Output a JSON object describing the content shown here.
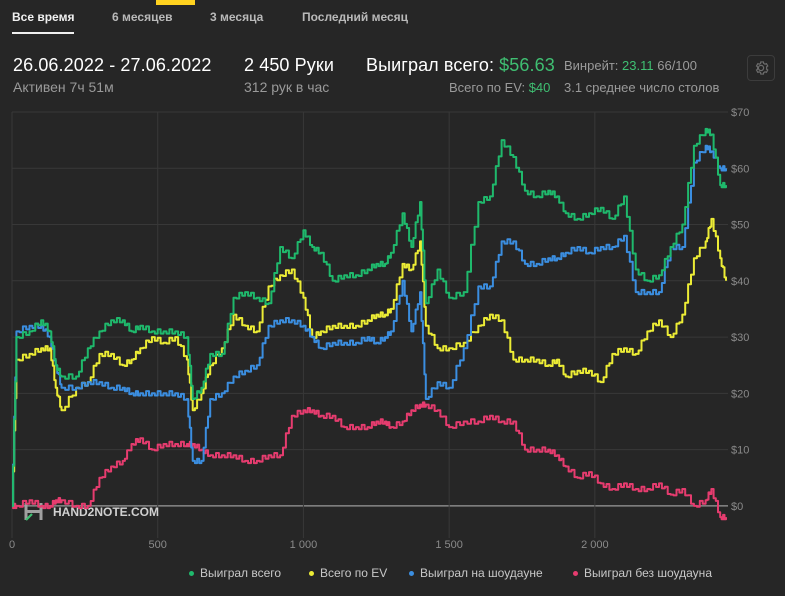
{
  "tabs": [
    {
      "label": "Все время",
      "active": true
    },
    {
      "label": "6 месяцев",
      "active": false
    },
    {
      "label": "3 месяца",
      "active": false
    },
    {
      "label": "Последний месяц",
      "active": false
    }
  ],
  "summary": {
    "date_range": "26.06.2022 - 27.06.2022",
    "active": "Активен 7ч 51м",
    "hands": "2 450 Руки",
    "hands_per_hour": "312 рук в час",
    "won_label": "Выиграл всего:",
    "won_value": "$56.63",
    "ev_label": "Всего по EV:",
    "ev_value": "$40",
    "winrate_label": "Винрейт:",
    "winrate_value": "23.11",
    "winrate_unit": "66/100",
    "tables_text": "3.1 среднее число столов"
  },
  "settings": {
    "icon": "gear-icon"
  },
  "watermark": {
    "text": "HAND2NOTE.COM"
  },
  "colors": {
    "won_total": "#1fb96c",
    "ev_total": "#ecec35",
    "showdown": "#3b8ee0",
    "non_showdown": "#e63c6f",
    "grid": "#383838",
    "zero_line": "#9a9a9a",
    "axis_text": "#8a8a8a"
  },
  "chart_data": {
    "type": "line",
    "title": "",
    "xlabel": "",
    "ylabel": "",
    "xlim": [
      0,
      2450
    ],
    "ylim": [
      -5,
      70
    ],
    "x_ticks": [
      0,
      500,
      1000,
      1500,
      2000
    ],
    "x_tick_labels": [
      "0",
      "500",
      "1 000",
      "1 500",
      "2 000"
    ],
    "y_ticks": [
      0,
      10,
      20,
      30,
      40,
      50,
      60,
      70
    ],
    "y_tick_labels": [
      "$0",
      "$10",
      "$20",
      "$30",
      "$40",
      "$50",
      "$60",
      "$70"
    ],
    "grid": true,
    "legend_position": "bottom",
    "series": [
      {
        "name": "Выиграл всего",
        "color": "#1fb96c",
        "points": [
          [
            0,
            0
          ],
          [
            15,
            30
          ],
          [
            60,
            31
          ],
          [
            100,
            33
          ],
          [
            130,
            31
          ],
          [
            150,
            25
          ],
          [
            170,
            23
          ],
          [
            220,
            23
          ],
          [
            260,
            28
          ],
          [
            300,
            31
          ],
          [
            340,
            33
          ],
          [
            380,
            33
          ],
          [
            410,
            31
          ],
          [
            440,
            32
          ],
          [
            480,
            31
          ],
          [
            520,
            31
          ],
          [
            560,
            31
          ],
          [
            600,
            30
          ],
          [
            620,
            19
          ],
          [
            650,
            21
          ],
          [
            680,
            27
          ],
          [
            720,
            27
          ],
          [
            760,
            37
          ],
          [
            800,
            38
          ],
          [
            840,
            37
          ],
          [
            880,
            36
          ],
          [
            920,
            46
          ],
          [
            960,
            44
          ],
          [
            1000,
            49
          ],
          [
            1030,
            46
          ],
          [
            1060,
            45
          ],
          [
            1100,
            40
          ],
          [
            1140,
            41
          ],
          [
            1180,
            41
          ],
          [
            1220,
            42
          ],
          [
            1250,
            43
          ],
          [
            1280,
            43
          ],
          [
            1300,
            45
          ],
          [
            1340,
            52
          ],
          [
            1370,
            46
          ],
          [
            1400,
            54
          ],
          [
            1420,
            36
          ],
          [
            1460,
            42
          ],
          [
            1500,
            37
          ],
          [
            1550,
            38
          ],
          [
            1600,
            54
          ],
          [
            1640,
            55
          ],
          [
            1680,
            65
          ],
          [
            1720,
            62
          ],
          [
            1760,
            56
          ],
          [
            1800,
            55
          ],
          [
            1840,
            56
          ],
          [
            1870,
            55
          ],
          [
            1900,
            52
          ],
          [
            1940,
            51
          ],
          [
            1980,
            52
          ],
          [
            2020,
            53
          ],
          [
            2060,
            51
          ],
          [
            2100,
            55
          ],
          [
            2140,
            42
          ],
          [
            2180,
            40
          ],
          [
            2220,
            41
          ],
          [
            2260,
            46
          ],
          [
            2300,
            50
          ],
          [
            2340,
            64
          ],
          [
            2380,
            67
          ],
          [
            2400,
            66
          ],
          [
            2430,
            57
          ],
          [
            2450,
            57
          ]
        ]
      },
      {
        "name": "Всего по EV",
        "color": "#ecec35",
        "points": [
          [
            0,
            0
          ],
          [
            15,
            26
          ],
          [
            60,
            27
          ],
          [
            100,
            28
          ],
          [
            130,
            28
          ],
          [
            150,
            21
          ],
          [
            170,
            17
          ],
          [
            220,
            21
          ],
          [
            260,
            22
          ],
          [
            300,
            27
          ],
          [
            340,
            27
          ],
          [
            380,
            25
          ],
          [
            410,
            26
          ],
          [
            440,
            28
          ],
          [
            480,
            30
          ],
          [
            520,
            29
          ],
          [
            560,
            30
          ],
          [
            600,
            26
          ],
          [
            620,
            17
          ],
          [
            650,
            20
          ],
          [
            680,
            25
          ],
          [
            720,
            28
          ],
          [
            760,
            34
          ],
          [
            800,
            32
          ],
          [
            840,
            31
          ],
          [
            880,
            39
          ],
          [
            920,
            41
          ],
          [
            960,
            42
          ],
          [
            1000,
            37
          ],
          [
            1030,
            30
          ],
          [
            1060,
            31
          ],
          [
            1100,
            32
          ],
          [
            1140,
            32
          ],
          [
            1180,
            32
          ],
          [
            1220,
            33
          ],
          [
            1250,
            34
          ],
          [
            1280,
            34
          ],
          [
            1300,
            35
          ],
          [
            1340,
            43
          ],
          [
            1370,
            42
          ],
          [
            1400,
            47
          ],
          [
            1420,
            32
          ],
          [
            1460,
            28
          ],
          [
            1500,
            28
          ],
          [
            1550,
            29
          ],
          [
            1600,
            32
          ],
          [
            1640,
            34
          ],
          [
            1680,
            33
          ],
          [
            1720,
            26
          ],
          [
            1760,
            26
          ],
          [
            1800,
            26
          ],
          [
            1840,
            25
          ],
          [
            1870,
            26
          ],
          [
            1900,
            23
          ],
          [
            1940,
            24
          ],
          [
            1980,
            24
          ],
          [
            2020,
            22
          ],
          [
            2060,
            27
          ],
          [
            2100,
            28
          ],
          [
            2140,
            27
          ],
          [
            2180,
            31
          ],
          [
            2220,
            33
          ],
          [
            2260,
            30
          ],
          [
            2300,
            34
          ],
          [
            2340,
            44
          ],
          [
            2380,
            47
          ],
          [
            2400,
            51
          ],
          [
            2430,
            44
          ],
          [
            2450,
            40
          ]
        ]
      },
      {
        "name": "Выиграл на шоудауне",
        "color": "#3b8ee0",
        "points": [
          [
            0,
            0
          ],
          [
            15,
            31
          ],
          [
            60,
            32
          ],
          [
            100,
            32
          ],
          [
            130,
            30
          ],
          [
            150,
            25
          ],
          [
            170,
            21
          ],
          [
            220,
            21
          ],
          [
            260,
            22
          ],
          [
            300,
            22
          ],
          [
            340,
            21
          ],
          [
            380,
            21
          ],
          [
            410,
            20
          ],
          [
            440,
            20
          ],
          [
            480,
            20
          ],
          [
            520,
            20
          ],
          [
            560,
            20
          ],
          [
            600,
            19
          ],
          [
            620,
            8
          ],
          [
            650,
            8
          ],
          [
            680,
            19
          ],
          [
            720,
            20
          ],
          [
            760,
            23
          ],
          [
            800,
            24
          ],
          [
            840,
            25
          ],
          [
            880,
            32
          ],
          [
            920,
            33
          ],
          [
            960,
            33
          ],
          [
            1000,
            32
          ],
          [
            1030,
            30
          ],
          [
            1060,
            28
          ],
          [
            1100,
            29
          ],
          [
            1140,
            29
          ],
          [
            1180,
            29
          ],
          [
            1220,
            30
          ],
          [
            1250,
            29
          ],
          [
            1280,
            30
          ],
          [
            1300,
            31
          ],
          [
            1340,
            40
          ],
          [
            1370,
            31
          ],
          [
            1400,
            38
          ],
          [
            1420,
            19
          ],
          [
            1460,
            22
          ],
          [
            1500,
            21
          ],
          [
            1550,
            28
          ],
          [
            1600,
            39
          ],
          [
            1640,
            39
          ],
          [
            1680,
            47
          ],
          [
            1720,
            47
          ],
          [
            1760,
            43
          ],
          [
            1800,
            43
          ],
          [
            1840,
            44
          ],
          [
            1870,
            44
          ],
          [
            1900,
            45
          ],
          [
            1940,
            46
          ],
          [
            1980,
            45
          ],
          [
            2020,
            46
          ],
          [
            2060,
            46
          ],
          [
            2100,
            48
          ],
          [
            2140,
            38
          ],
          [
            2180,
            38
          ],
          [
            2220,
            38
          ],
          [
            2260,
            46
          ],
          [
            2300,
            46
          ],
          [
            2340,
            61
          ],
          [
            2380,
            64
          ],
          [
            2400,
            63
          ],
          [
            2430,
            60
          ],
          [
            2450,
            60
          ]
        ]
      },
      {
        "name": "Выиграл без шоудауна",
        "color": "#e63c6f",
        "points": [
          [
            0,
            0
          ],
          [
            15,
            0
          ],
          [
            60,
            1
          ],
          [
            100,
            0
          ],
          [
            130,
            0
          ],
          [
            150,
            1
          ],
          [
            170,
            1
          ],
          [
            220,
            0
          ],
          [
            260,
            0
          ],
          [
            300,
            5
          ],
          [
            340,
            7
          ],
          [
            380,
            8
          ],
          [
            410,
            11
          ],
          [
            440,
            12
          ],
          [
            480,
            10
          ],
          [
            520,
            11
          ],
          [
            560,
            11
          ],
          [
            600,
            11
          ],
          [
            620,
            11
          ],
          [
            650,
            10
          ],
          [
            680,
            9
          ],
          [
            720,
            9
          ],
          [
            760,
            9
          ],
          [
            800,
            8
          ],
          [
            840,
            8
          ],
          [
            880,
            9
          ],
          [
            920,
            9
          ],
          [
            960,
            16
          ],
          [
            1000,
            17
          ],
          [
            1030,
            17
          ],
          [
            1060,
            16
          ],
          [
            1100,
            16
          ],
          [
            1140,
            14
          ],
          [
            1180,
            14
          ],
          [
            1220,
            14
          ],
          [
            1250,
            15
          ],
          [
            1280,
            15
          ],
          [
            1300,
            14
          ],
          [
            1340,
            15
          ],
          [
            1370,
            17
          ],
          [
            1400,
            18
          ],
          [
            1420,
            18
          ],
          [
            1460,
            17
          ],
          [
            1500,
            14
          ],
          [
            1550,
            15
          ],
          [
            1600,
            15
          ],
          [
            1640,
            16
          ],
          [
            1680,
            15
          ],
          [
            1720,
            15
          ],
          [
            1760,
            10
          ],
          [
            1800,
            10
          ],
          [
            1840,
            10
          ],
          [
            1870,
            9
          ],
          [
            1900,
            7
          ],
          [
            1940,
            5
          ],
          [
            1980,
            6
          ],
          [
            2020,
            4
          ],
          [
            2060,
            3
          ],
          [
            2100,
            4
          ],
          [
            2140,
            3
          ],
          [
            2180,
            3
          ],
          [
            2220,
            4
          ],
          [
            2260,
            2
          ],
          [
            2300,
            3
          ],
          [
            2340,
            0
          ],
          [
            2380,
            1
          ],
          [
            2400,
            3
          ],
          [
            2430,
            -2
          ],
          [
            2450,
            -2
          ]
        ]
      }
    ]
  }
}
